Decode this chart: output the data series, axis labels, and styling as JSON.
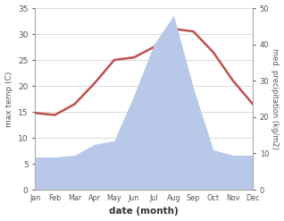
{
  "months": [
    "Jan",
    "Feb",
    "Mar",
    "Apr",
    "May",
    "Jun",
    "Jul",
    "Aug",
    "Sep",
    "Oct",
    "Nov",
    "Dec"
  ],
  "max_temp": [
    14.8,
    14.4,
    16.5,
    20.5,
    25.0,
    25.5,
    27.5,
    31.0,
    30.5,
    26.5,
    21.0,
    16.5
  ],
  "precipitation": [
    9.0,
    9.0,
    9.5,
    12.5,
    13.5,
    26.0,
    40.0,
    48.0,
    28.0,
    11.0,
    9.5,
    9.5
  ],
  "temp_color": "#c0504d",
  "precip_fill_color": "#b8c8e8",
  "ylim_temp": [
    0,
    35
  ],
  "ylim_precip": [
    0,
    50
  ],
  "xlabel": "date (month)",
  "ylabel_left": "max temp (C)",
  "ylabel_right": "med. precipitation (kg/m2)",
  "bg_color": "#ffffff",
  "grid_color": "#cccccc",
  "temp_lw": 1.8
}
